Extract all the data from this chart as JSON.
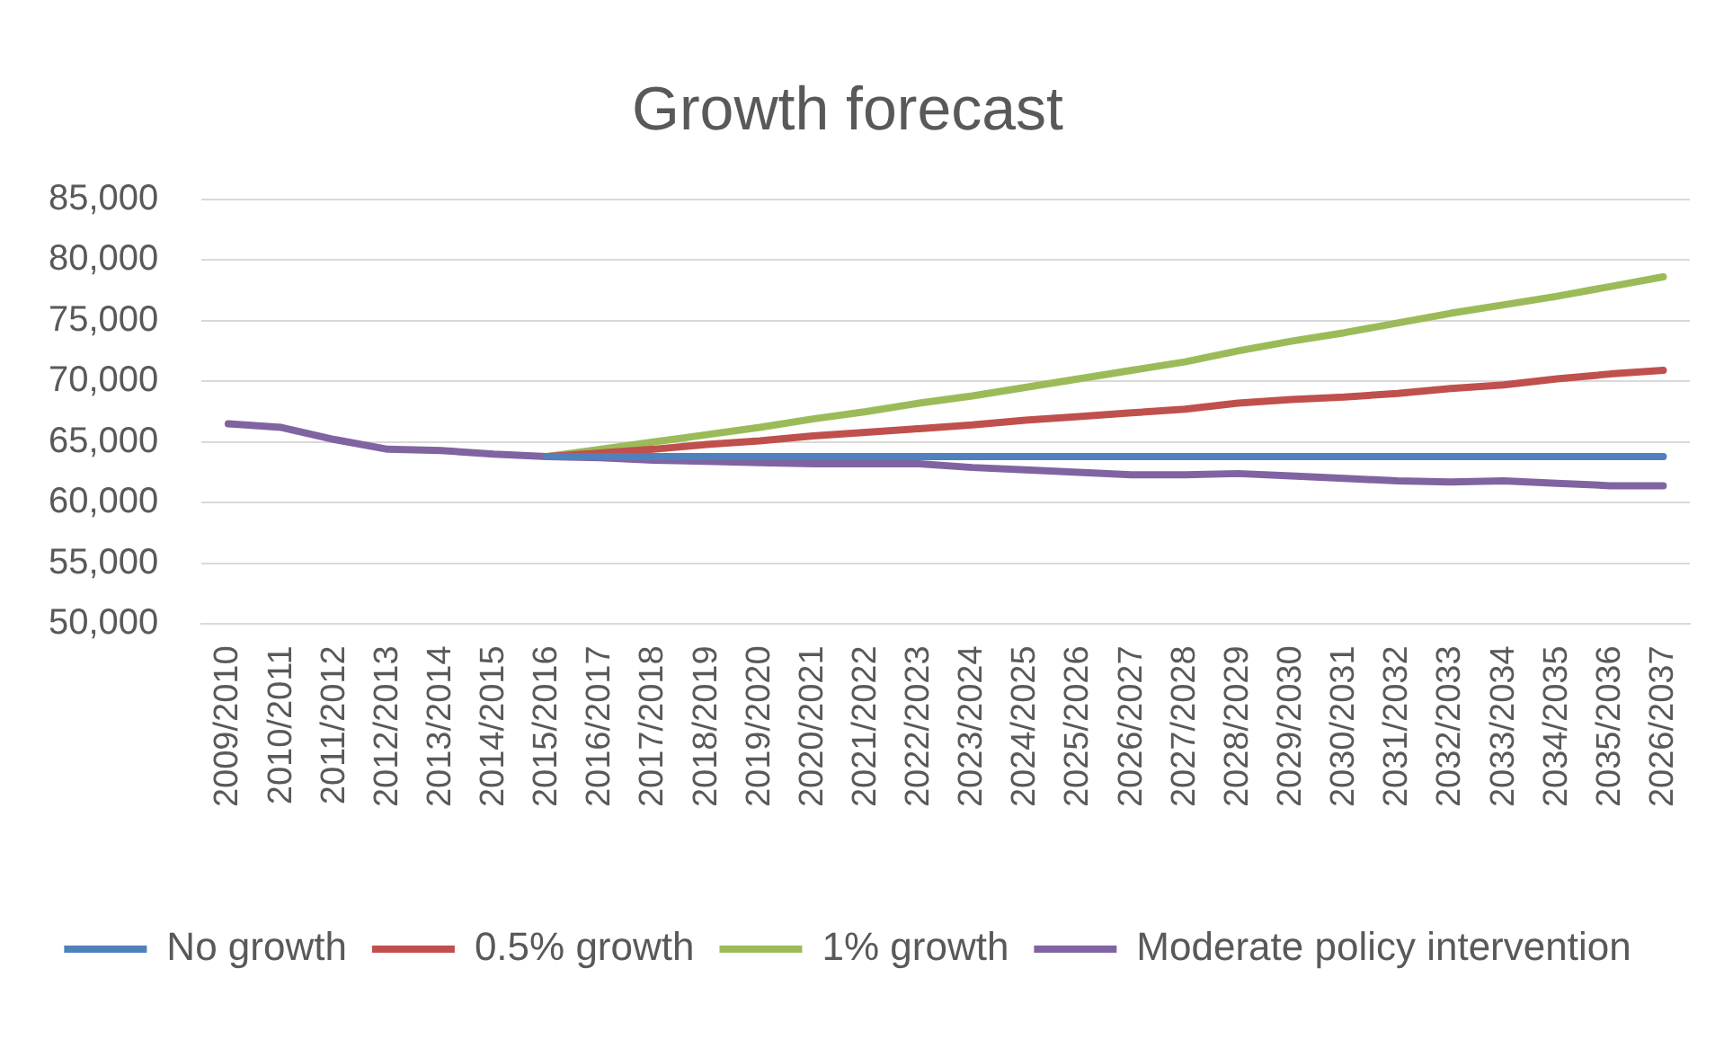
{
  "chart_data": {
    "type": "line",
    "title": "Growth forecast",
    "categories": [
      "2009/2010",
      "2010/2011",
      "2011/2012",
      "2012/2013",
      "2013/2014",
      "2014/2015",
      "2015/2016",
      "2016/2017",
      "2017/2018",
      "2018/2019",
      "2019/2020",
      "2020/2021",
      "2021/2022",
      "2022/2023",
      "2023/2024",
      "2024/2025",
      "2025/2026",
      "2026/2027",
      "2027/2028",
      "2028/2029",
      "2029/2030",
      "2030/2031",
      "2031/2032",
      "2032/2033",
      "2033/2034",
      "2034/2035",
      "2035/2036",
      "2026/2037"
    ],
    "series": [
      {
        "name": "No growth",
        "color": "#4f81bd",
        "values": [
          null,
          null,
          null,
          null,
          null,
          null,
          63800,
          63800,
          63800,
          63800,
          63800,
          63800,
          63800,
          63800,
          63800,
          63800,
          63800,
          63800,
          63800,
          63800,
          63800,
          63800,
          63800,
          63800,
          63800,
          63800,
          63800,
          63800
        ]
      },
      {
        "name": "0.5% growth",
        "color": "#c0504d",
        "values": [
          null,
          null,
          null,
          null,
          null,
          null,
          63800,
          64100,
          64400,
          64800,
          65100,
          65500,
          65800,
          66100,
          66400,
          66800,
          67100,
          67400,
          67700,
          68200,
          68500,
          68700,
          69000,
          69400,
          69700,
          70200,
          70600,
          70900
        ]
      },
      {
        "name": "1% growth",
        "color": "#9bbb59",
        "values": [
          null,
          null,
          null,
          null,
          null,
          null,
          63800,
          64400,
          65000,
          65600,
          66200,
          66900,
          67500,
          68200,
          68800,
          69500,
          70200,
          70900,
          71600,
          72500,
          73300,
          74000,
          74800,
          75600,
          76300,
          77000,
          77800,
          78600
        ]
      },
      {
        "name": "Moderate policy intervention",
        "color": "#8064a2",
        "values": [
          66500,
          66200,
          65200,
          64400,
          64300,
          64000,
          63800,
          63700,
          63500,
          63400,
          63300,
          63200,
          63200,
          63200,
          62900,
          62700,
          62500,
          62300,
          62300,
          62400,
          62200,
          62000,
          61800,
          61700,
          61800,
          61600,
          61400,
          61400
        ]
      }
    ],
    "ylim": [
      50000,
      85000
    ],
    "yticks": [
      {
        "value": 50000,
        "label": "50,000"
      },
      {
        "value": 55000,
        "label": "55,000"
      },
      {
        "value": 60000,
        "label": "60,000"
      },
      {
        "value": 65000,
        "label": "65,000"
      },
      {
        "value": 70000,
        "label": "70,000"
      },
      {
        "value": 75000,
        "label": "75,000"
      },
      {
        "value": 80000,
        "label": "80,000"
      },
      {
        "value": 85000,
        "label": "85,000"
      }
    ],
    "grid": "y",
    "legend": "bottom"
  }
}
